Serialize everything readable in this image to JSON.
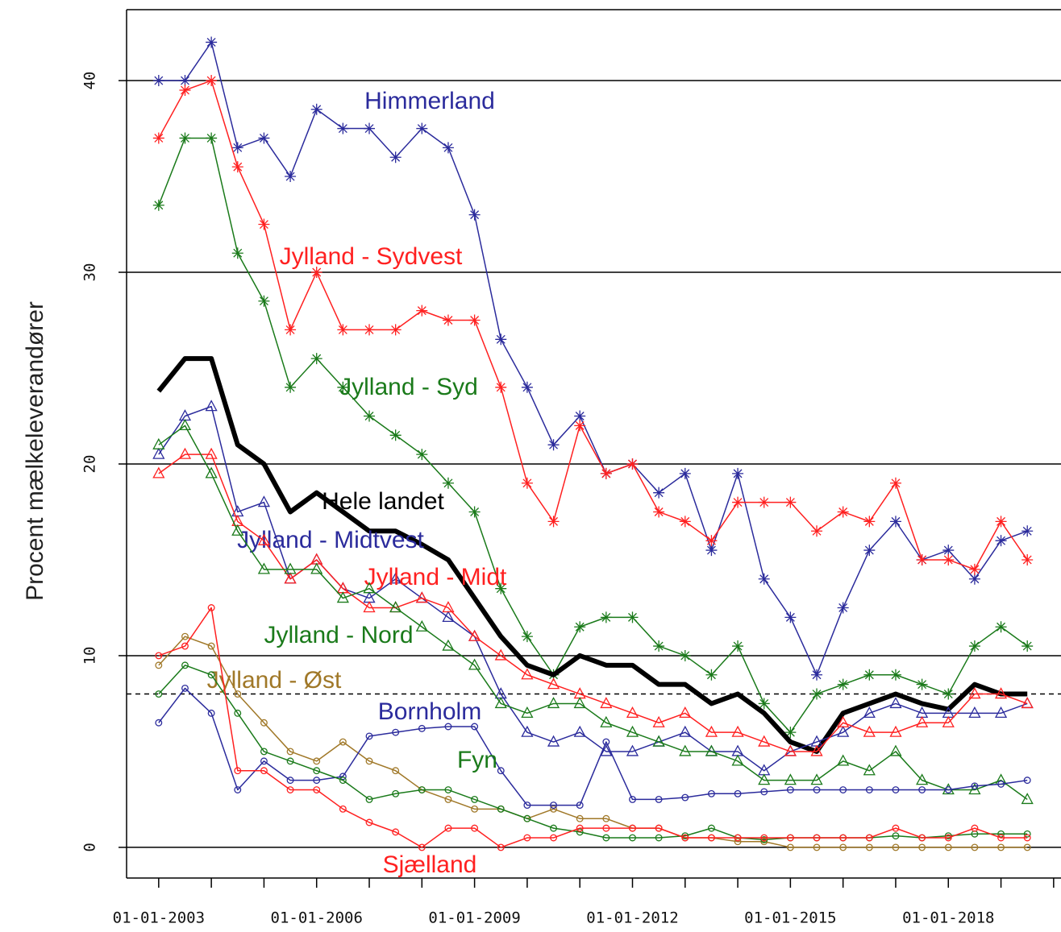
{
  "chart_data": {
    "type": "line",
    "ylabel": "Procent mælkeleverandører",
    "x": [
      2003,
      2003.5,
      2004,
      2004.5,
      2005,
      2005.5,
      2006,
      2006.5,
      2007,
      2007.5,
      2008,
      2008.5,
      2009,
      2009.5,
      2010,
      2010.5,
      2011,
      2011.5,
      2012,
      2012.5,
      2013,
      2013.5,
      2014,
      2014.5,
      2015,
      2015.5,
      2016,
      2016.5,
      2017,
      2017.5,
      2018,
      2018.5,
      2019,
      2019.5
    ],
    "xlim": [
      2002.39,
      2020.14
    ],
    "xticks": [
      {
        "value": 2003,
        "label": "01-01-2003"
      },
      {
        "value": 2006,
        "label": "01-01-2006"
      },
      {
        "value": 2009,
        "label": "01-01-2009"
      },
      {
        "value": 2012,
        "label": "01-01-2012"
      },
      {
        "value": 2015,
        "label": "01-01-2015"
      },
      {
        "value": 2018,
        "label": "01-01-2018"
      }
    ],
    "xminor_ticks": [
      2004,
      2005,
      2007,
      2008,
      2010,
      2011,
      2013,
      2014,
      2016,
      2017,
      2019,
      2020
    ],
    "ylim": [
      -1.6,
      43.7
    ],
    "yticks": [
      0,
      10,
      20,
      30,
      40
    ],
    "grid": true,
    "hline": 8,
    "series": [
      {
        "name": "Himmerland",
        "color": "#2b2b9c",
        "marker": "asterisk",
        "values": [
          40,
          40,
          42,
          36.5,
          37,
          35,
          38.5,
          37.5,
          37.5,
          36,
          37.5,
          36.5,
          33,
          26.5,
          24,
          21,
          22.5,
          19.5,
          20,
          18.5,
          19.5,
          15.5,
          19.5,
          14,
          12,
          9,
          12.5,
          15.5,
          17,
          15,
          15.5,
          14,
          16,
          16.5
        ]
      },
      {
        "name": "Jylland - Sydvest",
        "color": "#ff2020",
        "marker": "asterisk",
        "values": [
          37,
          39.5,
          40,
          35.5,
          32.5,
          27,
          30,
          27,
          27,
          27,
          28,
          27.5,
          27.5,
          24,
          19,
          17,
          22,
          19.5,
          20,
          17.5,
          17,
          16,
          18,
          18,
          18,
          16.5,
          17.5,
          17,
          19,
          15,
          15,
          14.5,
          17,
          15
        ]
      },
      {
        "name": "Jylland - Syd",
        "color": "#1a7a1a",
        "marker": "asterisk",
        "values": [
          33.5,
          37,
          37,
          31,
          28.5,
          24,
          25.5,
          24,
          22.5,
          21.5,
          20.5,
          19,
          17.5,
          13.5,
          11,
          9,
          11.5,
          12,
          12,
          10.5,
          10,
          9,
          10.5,
          7.5,
          6,
          8,
          8.5,
          9,
          9,
          8.5,
          8,
          10.5,
          11.5,
          10.5
        ]
      },
      {
        "name": "Hele landet",
        "color": "#000000",
        "marker": "none",
        "values": [
          23.8,
          25.5,
          25.5,
          21,
          20,
          17.5,
          18.5,
          17.5,
          16.5,
          16.5,
          15.8,
          15,
          13,
          11,
          9.5,
          9,
          10,
          9.5,
          9.5,
          8.5,
          8.5,
          7.5,
          8,
          7,
          5.5,
          5,
          7,
          7.5,
          8,
          7.5,
          7.2,
          8.5,
          8,
          8
        ]
      },
      {
        "name": "Jylland - Midtvest",
        "color": "#2b2b9c",
        "marker": "triangle",
        "values": [
          20.5,
          22.5,
          23,
          17.5,
          18,
          14,
          15,
          13.5,
          13,
          14,
          13,
          12,
          11,
          8,
          6,
          5.5,
          6,
          5,
          5,
          5.5,
          6,
          5,
          5,
          4,
          5,
          5.5,
          6,
          7,
          7.5,
          7,
          7,
          7,
          7,
          7.5
        ]
      },
      {
        "name": "Jylland - Midt",
        "color": "#ff2020",
        "marker": "triangle",
        "values": [
          19.5,
          20.5,
          20.5,
          17,
          16,
          14,
          15,
          13.5,
          12.5,
          12.5,
          13,
          12.5,
          11,
          10,
          9,
          8.5,
          8,
          7.5,
          7,
          6.5,
          7,
          6,
          6,
          5.5,
          5,
          5,
          6.5,
          6,
          6,
          6.5,
          6.5,
          8,
          8,
          7.5
        ]
      },
      {
        "name": "Jylland - Nord",
        "color": "#1a7a1a",
        "marker": "triangle",
        "values": [
          21,
          22,
          19.5,
          16.5,
          14.5,
          14.5,
          14.5,
          13,
          13.5,
          12.5,
          11.5,
          10.5,
          9.5,
          7.5,
          7,
          7.5,
          7.5,
          6.5,
          6,
          5.5,
          5,
          5,
          4.5,
          3.5,
          3.5,
          3.5,
          4.5,
          4,
          5,
          3.5,
          3,
          3,
          3.5,
          2.5
        ]
      },
      {
        "name": "Jylland - Øst",
        "color": "#a07828",
        "marker": "circle",
        "values": [
          9.5,
          11,
          10.5,
          8,
          6.5,
          5,
          4.5,
          5.5,
          4.5,
          4,
          3,
          2.5,
          2,
          2,
          1.5,
          2,
          1.5,
          1.5,
          1,
          1,
          0.5,
          0.5,
          0.3,
          0.3,
          0,
          0,
          0,
          0,
          0,
          0,
          0,
          0,
          0,
          0
        ]
      },
      {
        "name": "Bornholm",
        "color": "#2b2b9c",
        "marker": "circle",
        "values": [
          6.5,
          8.3,
          7,
          3,
          4.5,
          3.5,
          3.5,
          3.7,
          5.8,
          6,
          6.2,
          6.3,
          6.3,
          4,
          2.2,
          2.2,
          2.2,
          5.5,
          2.5,
          2.5,
          2.6,
          2.8,
          2.8,
          2.9,
          3,
          3,
          3,
          3,
          3,
          3,
          3,
          3.2,
          3.3,
          3.5
        ]
      },
      {
        "name": "Fyn",
        "color": "#1a7a1a",
        "marker": "circle",
        "values": [
          8,
          9.5,
          9,
          7,
          5,
          4.5,
          4,
          3.5,
          2.5,
          2.8,
          3,
          3,
          2.5,
          2,
          1.5,
          1,
          0.8,
          0.5,
          0.5,
          0.5,
          0.6,
          1,
          0.5,
          0.4,
          0.5,
          0.5,
          0.5,
          0.5,
          0.6,
          0.5,
          0.6,
          0.7,
          0.7,
          0.7
        ]
      },
      {
        "name": "Sjælland",
        "color": "#ff2020",
        "marker": "circle",
        "values": [
          10,
          10.5,
          12.5,
          4,
          4,
          3,
          3,
          2,
          1.3,
          0.8,
          0,
          1,
          1,
          0,
          0.5,
          0.5,
          1,
          1,
          1,
          1,
          0.5,
          0.5,
          0.5,
          0.5,
          0.5,
          0.5,
          0.5,
          0.5,
          1,
          0.5,
          0.5,
          1,
          0.5,
          0.5
        ]
      }
    ]
  }
}
